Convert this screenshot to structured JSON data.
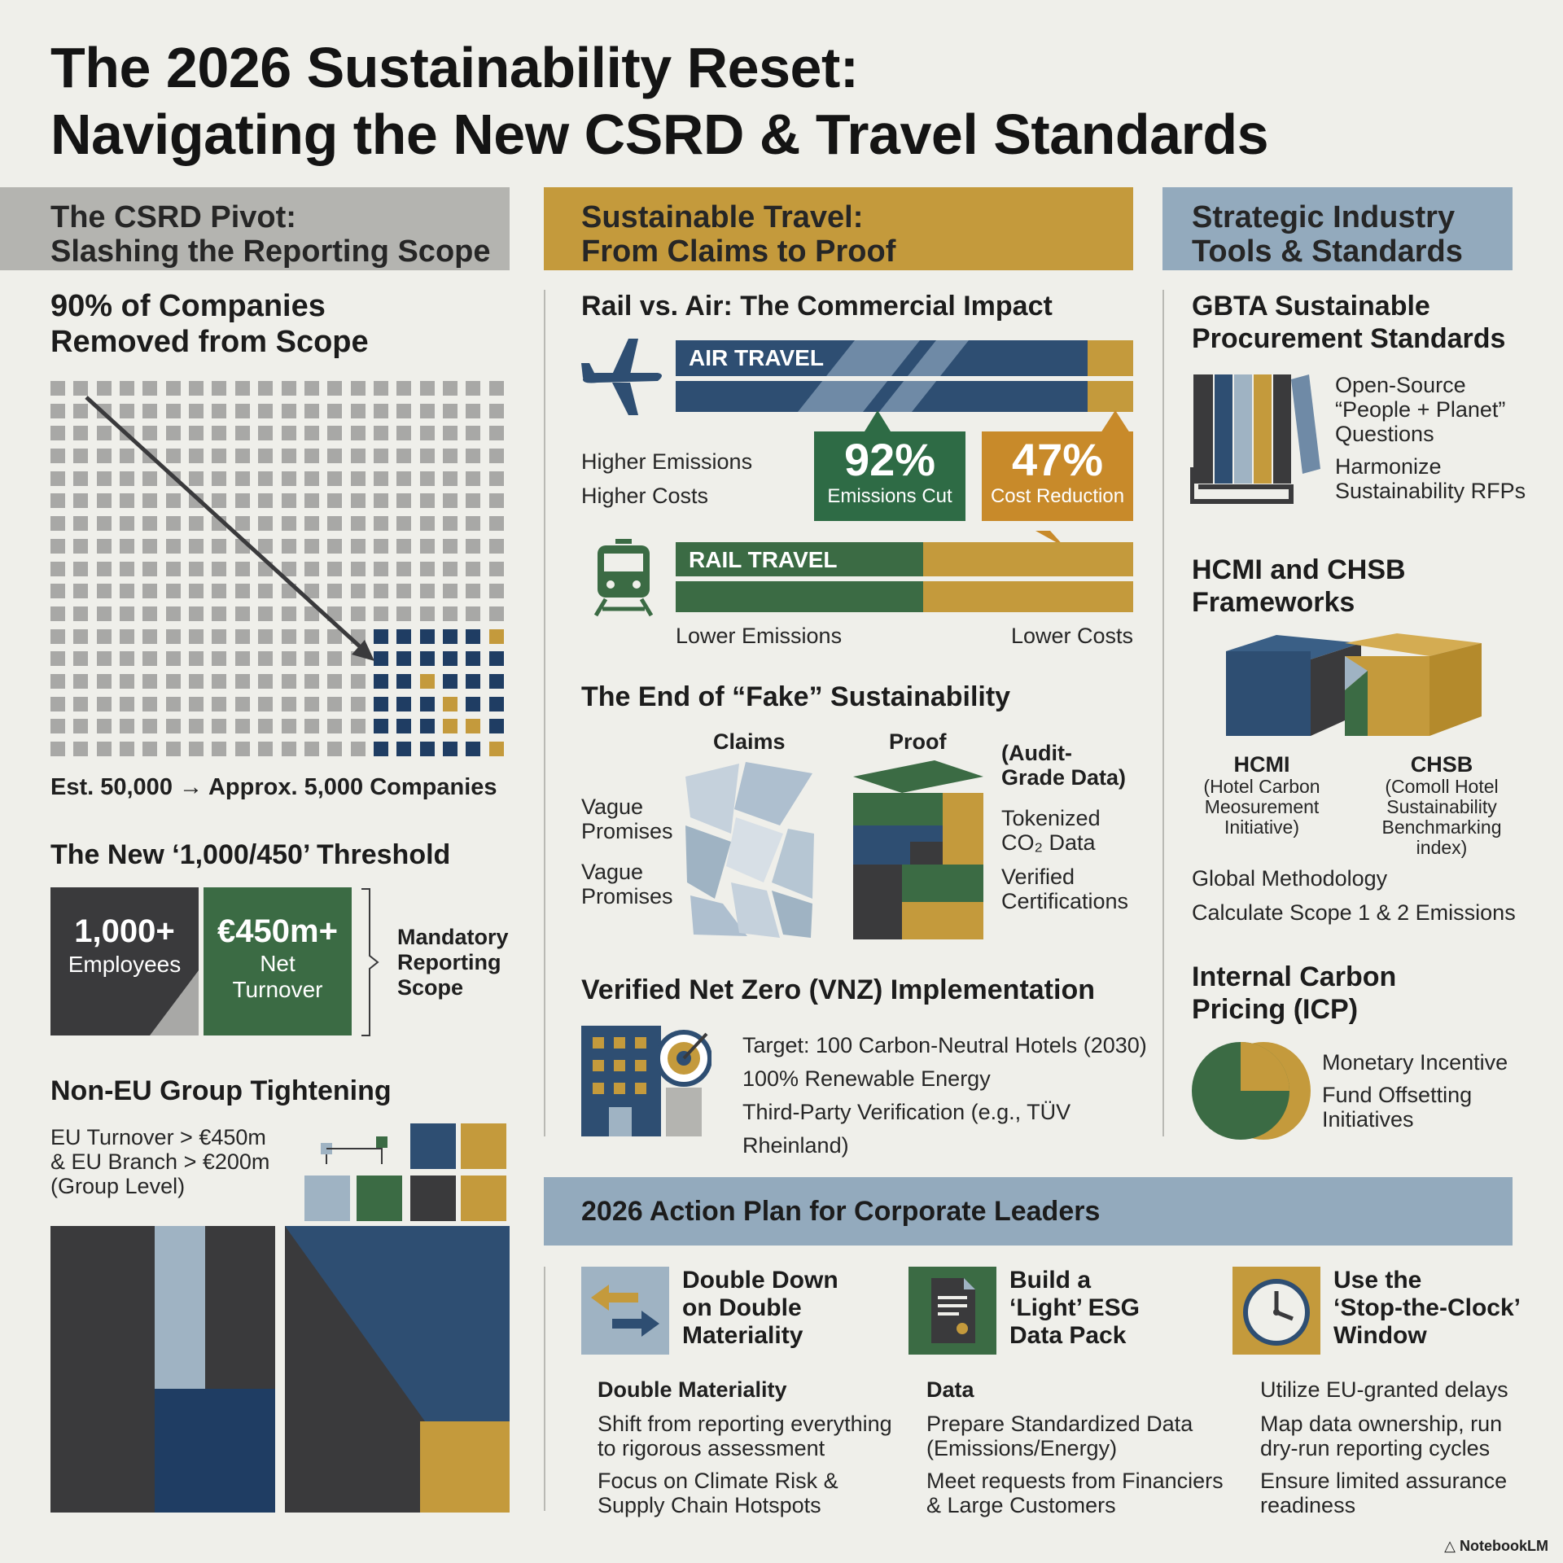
{
  "title": {
    "line1": "The 2026 Sustainability Reset:",
    "line2": "Navigating the New CSRD & Travel Standards"
  },
  "colors": {
    "navy": "#2e4e72",
    "green": "#3b6b44",
    "gold": "#c49a3c",
    "dark": "#3a3a3c",
    "light_blue": "#9fb3c3",
    "band_gray": "#b4b4b0",
    "band_blue": "#93aabd",
    "background": "#efefea"
  },
  "col1": {
    "band": {
      "line1": "The CSRD Pivot:",
      "line2": "Slashing the Reporting Scope"
    },
    "scope": {
      "heading_line1": "90% of Companies",
      "heading_line2": "Removed from Scope",
      "caption": "Est. 50,000 → Approx. 5,000 Companies",
      "removed_share": 0.9
    },
    "threshold": {
      "heading": "The New ‘1,000/450’ Threshold",
      "employees_value": "1,000+",
      "employees_label": "Employees",
      "turnover_value": "€450m+",
      "turnover_label_line1": "Net",
      "turnover_label_line2": "Turnover",
      "bracket_line1": "Mandatory",
      "bracket_line2": "Reporting",
      "bracket_line3": "Scope"
    },
    "nonEU": {
      "heading": "Non-EU Group Tightening",
      "line1": "EU Turnover > €450m",
      "line2": "& EU Branch > €200m",
      "line3": "(Group Level)"
    }
  },
  "col2": {
    "band": {
      "line1": "Sustainable Travel:",
      "line2": "From Claims to Proof"
    },
    "rail_air": {
      "heading": "Rail vs. Air: The Commercial Impact",
      "air_label": "AIR TRAVEL",
      "air_note1": "Higher Emissions",
      "air_note2": "Higher Costs",
      "stat1_value": "92%",
      "stat1_label": "Emissions Cut",
      "stat2_value": "47%",
      "stat2_label": "Cost Reduction",
      "rail_label": "RAIL TRAVEL",
      "rail_note1": "Lower Emissions",
      "rail_note2": "Lower Costs",
      "plane_icon": "airplane-icon",
      "train_icon": "train-icon"
    },
    "fake": {
      "heading": "The End of “Fake” Sustainability",
      "claims_label": "Claims",
      "proof_label": "Proof",
      "vague1_line1": "Vague",
      "vague1_line2": "Promises",
      "vague2_line1": "Vague",
      "vague2_line2": "Promises",
      "audit_line1": "(Audit-",
      "audit_line2": "Grade Data)",
      "token_line1": "Tokenized",
      "token_line2": "CO₂ Data",
      "verified_line1": "Verified",
      "verified_line2": "Certifications"
    },
    "vnz": {
      "heading": "Verified Net Zero (VNZ) Implementation",
      "item1": "Target: 100 Carbon-Neutral Hotels (2030)",
      "item2": "100% Renewable Energy",
      "item3": "Third-Party Verification (e.g., TÜV Rheinland)"
    }
  },
  "col3": {
    "band": {
      "line1": "Strategic Industry",
      "line2": "Tools & Standards"
    },
    "gbta": {
      "heading_line1": "GBTA Sustainable",
      "heading_line2": "Procurement Standards",
      "item1_line1": "Open-Source",
      "item1_line2": "“People + Planet”",
      "item1_line3": "Questions",
      "item2_line1": "Harmonize",
      "item2_line2": "Sustainability RFPs"
    },
    "hcmi": {
      "heading_line1": "HCMI and CHSB",
      "heading_line2": "Frameworks",
      "hcmi_title": "HCMI",
      "hcmi_sub1": "(Hotel Carbon",
      "hcmi_sub2": "Meosurement",
      "hcmi_sub3": "Initiative)",
      "chsb_title": "CHSB",
      "chsb_sub1": "(Comoll Hotel",
      "chsb_sub2": "Sustainability",
      "chsb_sub3": "Benchmarking",
      "chsb_sub4": "index)",
      "note1": "Global Methodology",
      "note2": "Calculate Scope 1 & 2 Emissions"
    },
    "icp": {
      "heading_line1": "Internal Carbon",
      "heading_line2": "Pricing (ICP)",
      "item1": "Monetary Incentive",
      "item2_line1": "Fund Offsetting",
      "item2_line2": "Initiatives"
    }
  },
  "action": {
    "band": "2026 Action Plan for Corporate Leaders",
    "a1": {
      "title_line1": "Double Down",
      "title_line2": "on Double",
      "title_line3": "Materiality",
      "subhead": "Double Materiality",
      "p1_line1": "Shift from reporting everything",
      "p1_line2": "to rigorous assessment",
      "p2_line1": "Focus on Climate Risk &",
      "p2_line2": "Supply Chain Hotspots",
      "icon": "arrows-exchange-icon"
    },
    "a2": {
      "title_line1": "Build a",
      "title_line2": "‘Light’ ESG",
      "title_line3": "Data Pack",
      "subhead": "Data",
      "p1_line1": "Prepare Standardized Data",
      "p1_line2": "(Emissions/Energy)",
      "p2_line1": "Meet requests from Financiers",
      "p2_line2": "& Large Customers",
      "icon": "document-icon"
    },
    "a3": {
      "title_line1": "Use the",
      "title_line2": "‘Stop-the-Clock’",
      "title_line3": "Window",
      "p0": "Utilize EU-granted delays",
      "p1_line1": "Map data ownership, run",
      "p1_line2": "dry-run reporting cycles",
      "p2_line1": "Ensure limited assurance",
      "p2_line2": "readiness",
      "icon": "clock-icon"
    }
  },
  "brand": "NotebookLM"
}
